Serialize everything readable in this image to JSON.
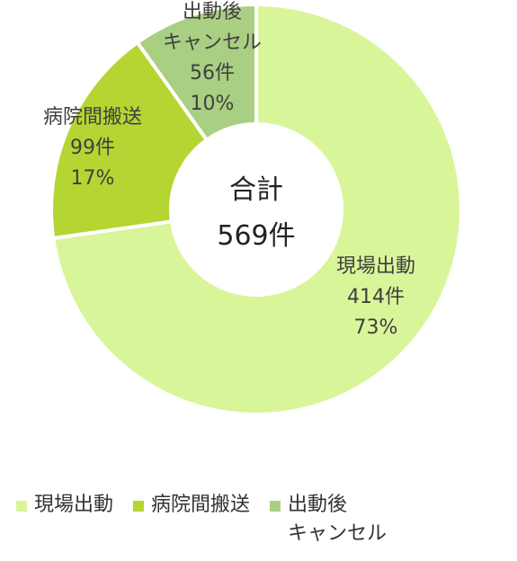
{
  "chart_data": {
    "type": "pie",
    "donut": true,
    "center_label": [
      "合計",
      "569件"
    ],
    "slices": [
      {
        "label": "現場出動",
        "count_label": "414件",
        "pct_label": "73%",
        "value": 414,
        "color": "#d9f59a"
      },
      {
        "label": "病院間搬送",
        "count_label": "99件",
        "pct_label": "17%",
        "value": 99,
        "color": "#b5d532"
      },
      {
        "label": "出動後キャンセル",
        "label_lines": [
          "出動後",
          "キャンセル"
        ],
        "count_label": "56件",
        "pct_label": "10%",
        "value": 56,
        "color": "#a9cf82"
      }
    ],
    "legend": {
      "placement": "bottom",
      "items": [
        {
          "label": "現場出動",
          "color": "#d9f59a"
        },
        {
          "label": "病院間搬送",
          "color": "#b5d532"
        },
        {
          "label_lines": [
            "出動後",
            "キャンセル"
          ],
          "color": "#a9cf82"
        }
      ]
    }
  }
}
